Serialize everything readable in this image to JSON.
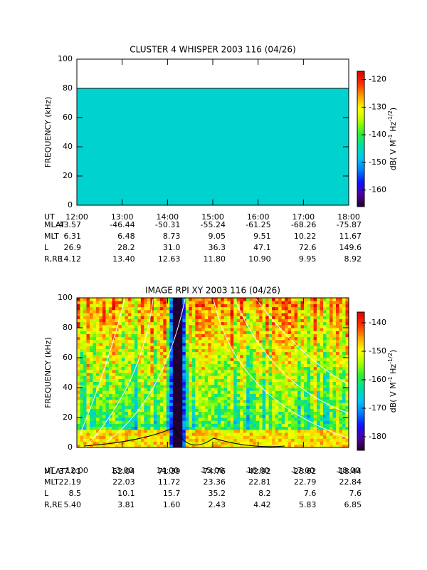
{
  "chart_data": [
    {
      "type": "spectrogram",
      "title": "CLUSTER 4 WHISPER 2003 116 (04/26)",
      "ylabel": "FREQUENCY (kHz)",
      "ylim": [
        0,
        100
      ],
      "yticks": [
        0,
        20,
        40,
        60,
        80,
        100
      ],
      "max_frequency": 80,
      "xlim": [
        12,
        18
      ],
      "xticks": [
        {
          "value": 12,
          "label": "12:00"
        },
        {
          "value": 13,
          "label": "13:00"
        },
        {
          "value": 14,
          "label": "14:00"
        },
        {
          "value": 15,
          "label": "15:00"
        },
        {
          "value": 16,
          "label": "16:00"
        },
        {
          "value": 17,
          "label": "17:00"
        },
        {
          "value": 18,
          "label": "18:00"
        }
      ],
      "colorbar": {
        "lim": [
          -166,
          -117
        ],
        "ticks": [
          -120,
          -130,
          -140,
          -150,
          -160
        ],
        "label": [
          "dB( V M",
          "-1",
          " Hz",
          "-1/2",
          ")"
        ]
      },
      "ut_label": "UT",
      "ephemeris": [
        {
          "label": "MLAT",
          "values": [
            "-43.57",
            "-46.44",
            "-50.31",
            "-55.24",
            "-61.25",
            "-68.26",
            "-75.87"
          ]
        },
        {
          "label": "MLT",
          "values": [
            "6.31",
            "6.48",
            "8.73",
            "9.05",
            "9.51",
            "10.22",
            "11.67"
          ]
        },
        {
          "label": "L",
          "values": [
            "26.9",
            "28.2",
            "31.0",
            "36.3",
            "47.1",
            "72.6",
            "149.6"
          ]
        },
        {
          "label": "R,RE",
          "values": [
            "14.12",
            "13.40",
            "12.63",
            "11.80",
            "10.90",
            "9.95",
            "8.92"
          ]
        }
      ]
    },
    {
      "type": "spectrogram",
      "title": "IMAGE RPI XY 2003 116 (04/26)",
      "ylabel": "FREQUENCY (kHz)",
      "ylim": [
        0,
        100
      ],
      "yticks": [
        0,
        20,
        40,
        60,
        80,
        100
      ],
      "xlim": [
        12,
        18
      ],
      "xticks": [
        {
          "value": 12,
          "label": "12:00"
        },
        {
          "value": 13,
          "label": "13:00"
        },
        {
          "value": 14,
          "label": "14:00"
        },
        {
          "value": 15,
          "label": "15:00"
        },
        {
          "value": 16,
          "label": "16:00"
        },
        {
          "value": 17,
          "label": "17:00"
        },
        {
          "value": 18,
          "label": "18:00"
        }
      ],
      "colorbar": {
        "lim": [
          -184.75,
          -136.25
        ],
        "ticks": [
          -140,
          -150,
          -160,
          -170,
          -180
        ],
        "label": [
          "dB( V M",
          "-1",
          " Hz",
          "-1/2",
          ")"
        ]
      },
      "ut_label": "UT",
      "ephemeris": [
        {
          "label": "MLAT",
          "values": [
            "37.01",
            "52.04",
            "71.39",
            "-74.76",
            "-42.92",
            "-28.62",
            "-18.44"
          ]
        },
        {
          "label": "MLT",
          "values": [
            "22.19",
            "22.03",
            "11.72",
            "23.36",
            "22.81",
            "22.79",
            "22.84"
          ]
        },
        {
          "label": "L",
          "values": [
            "8.5",
            "10.1",
            "15.7",
            "35.2",
            "8.2",
            "7.6",
            "7.6"
          ]
        },
        {
          "label": "R,RE",
          "values": [
            "5.40",
            "3.81",
            "1.60",
            "2.43",
            "4.42",
            "5.83",
            "6.85"
          ]
        }
      ]
    }
  ]
}
